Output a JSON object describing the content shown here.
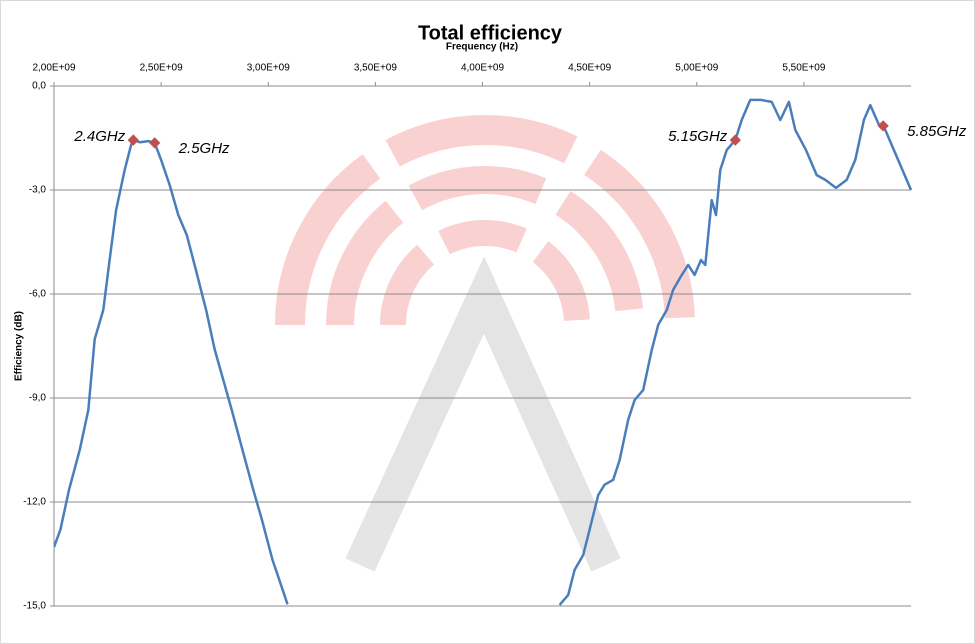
{
  "chart_data": {
    "type": "line",
    "title": "Total efficiency",
    "x_label": "Frequency (Hz)",
    "y_label": "Efficiency (dB)",
    "xlim": [
      2000000000,
      6000000000
    ],
    "xticks": [
      {
        "value": 2000000000,
        "label": "2,00E+09"
      },
      {
        "value": 2500000000,
        "label": "2,50E+09"
      },
      {
        "value": 3000000000,
        "label": "3,00E+09"
      },
      {
        "value": 3500000000,
        "label": "3,50E+09"
      },
      {
        "value": 4000000000,
        "label": "4,00E+09"
      },
      {
        "value": 4500000000,
        "label": "4,50E+09"
      },
      {
        "value": 5000000000,
        "label": "5,00E+09"
      },
      {
        "value": 5500000000,
        "label": "5,50E+09"
      }
    ],
    "ylim": [
      -15,
      0
    ],
    "yticks": [
      {
        "value": 0,
        "label": "0,0"
      },
      {
        "value": -3,
        "label": "-3,0"
      },
      {
        "value": -6,
        "label": "-6,0"
      },
      {
        "value": -9,
        "label": "-9,0"
      },
      {
        "value": -12,
        "label": "-12,0"
      },
      {
        "value": -15,
        "label": "-15,0"
      }
    ],
    "grid": true,
    "series": [
      {
        "color": "#4a7ebb",
        "x": [
          2000000000.0,
          2030000000.0,
          2070000000.0,
          2120000000.0,
          2160000000.0,
          2190000000.0,
          2230000000.0,
          2260000000.0,
          2290000000.0,
          2330000000.0,
          2360000000.0,
          2370000000.0,
          2400000000.0,
          2440000000.0,
          2470000000.0,
          2500000000.0,
          2540000000.0,
          2580000000.0,
          2620000000.0,
          2660000000.0,
          2710000000.0,
          2750000000.0,
          2790000000.0,
          2830000000.0,
          2880000000.0,
          2930000000.0,
          2970000000.0,
          3020000000.0,
          3060000000.0,
          3090000000.0,
          3500000000.0,
          4360000000.0,
          4400000000.0,
          4430000000.0,
          4470000000.0,
          4500000000.0,
          4540000000.0,
          4570000000.0,
          4610000000.0,
          4640000000.0,
          4680000000.0,
          4710000000.0,
          4750000000.0,
          4790000000.0,
          4820000000.0,
          4860000000.0,
          4890000000.0,
          4930000000.0,
          4960000000.0,
          4990000000.0,
          5020000000.0,
          5040000000.0,
          5070000000.0,
          5090000000.0,
          5110000000.0,
          5140000000.0,
          5180000000.0,
          5210000000.0,
          5250000000.0,
          5300000000.0,
          5350000000.0,
          5390000000.0,
          5430000000.0,
          5460000000.0,
          5510000000.0,
          5560000000.0,
          5600000000.0,
          5650000000.0,
          5700000000.0,
          5740000000.0,
          5780000000.0,
          5810000000.0,
          5850000000.0,
          5870000000.0,
          5920000000.0,
          5960000000.0,
          6000000000.0
        ],
        "values": [
          -13.3,
          -12.8,
          -11.65,
          -10.5,
          -9.35,
          -7.3,
          -6.46,
          -5.0,
          -3.58,
          -2.42,
          -1.7,
          -1.56,
          -1.62,
          -1.59,
          -1.64,
          -2.13,
          -2.86,
          -3.72,
          -4.3,
          -5.25,
          -6.46,
          -7.6,
          -8.48,
          -9.35,
          -10.5,
          -11.65,
          -12.5,
          -13.67,
          -14.4,
          -14.95,
          null,
          -14.97,
          -14.68,
          -13.96,
          -13.53,
          -12.8,
          -11.8,
          -11.5,
          -11.36,
          -10.79,
          -9.63,
          -9.06,
          -8.77,
          -7.61,
          -6.89,
          -6.46,
          -5.88,
          -5.45,
          -5.16,
          -5.45,
          -5.02,
          -5.16,
          -3.29,
          -3.72,
          -2.42,
          -1.85,
          -1.56,
          -0.98,
          -0.4,
          -0.4,
          -0.46,
          -0.98,
          -0.46,
          -1.27,
          -1.85,
          -2.57,
          -2.71,
          -2.94,
          -2.71,
          -2.13,
          -0.98,
          -0.55,
          -1.12,
          -1.12,
          -1.85,
          -2.42,
          -3.0
        ]
      },
      {
        "type": "scatter",
        "color": "#c0504d",
        "x": [
          2370000000.0,
          2470000000.0,
          5180000000.0,
          5870000000.0
        ],
        "values": [
          -1.56,
          -1.64,
          -1.56,
          -1.15
        ],
        "labels": [
          "2.4GHz",
          "2.5GHz",
          "5.15GHz",
          "5.85GHz"
        ]
      }
    ]
  }
}
